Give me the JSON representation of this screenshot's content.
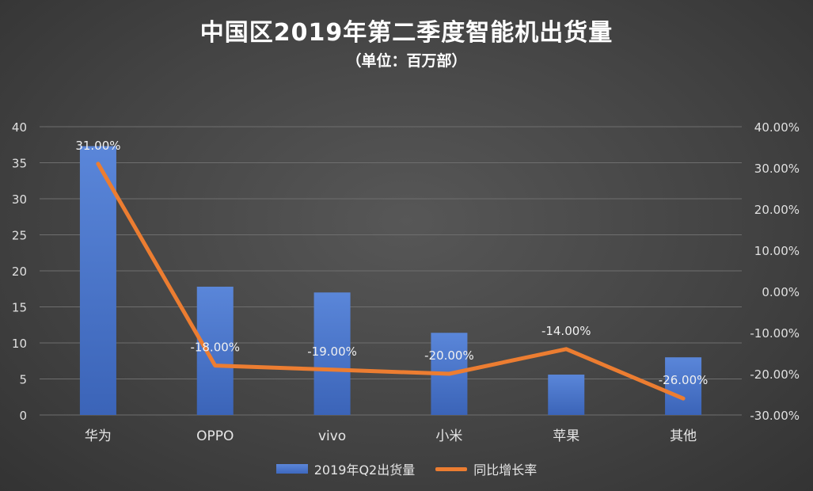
{
  "chart_data": {
    "type": "bar+line",
    "title": "中国区2019年第二季度智能机出货量",
    "subtitle": "（单位：百万部）",
    "categories": [
      "华为",
      "OPPO",
      "vivo",
      "小米",
      "苹果",
      "其他"
    ],
    "series": [
      {
        "name": "2019年Q2出货量",
        "type": "bar",
        "axis": "left",
        "color": "#4472c4",
        "values": [
          37.3,
          17.8,
          17.0,
          11.4,
          5.6,
          8.0
        ]
      },
      {
        "name": "同比增长率",
        "type": "line",
        "axis": "right",
        "color": "#ec7d31",
        "values": [
          31,
          -18,
          -19,
          -20,
          -14,
          -26
        ],
        "labels": [
          "31.00%",
          "-18.00%",
          "-19.00%",
          "-20.00%",
          "-14.00%",
          "-26.00%"
        ]
      }
    ],
    "y_left": {
      "min": 0,
      "max": 40,
      "ticks": [
        "0",
        "5",
        "10",
        "15",
        "20",
        "25",
        "30",
        "35",
        "40"
      ]
    },
    "y_right": {
      "min": -30,
      "max": 40,
      "ticks": [
        "-30.00%",
        "-20.00%",
        "-10.00%",
        "0.00%",
        "10.00%",
        "20.00%",
        "30.00%",
        "40.00%"
      ]
    },
    "grid": true,
    "legend": "bottom"
  }
}
